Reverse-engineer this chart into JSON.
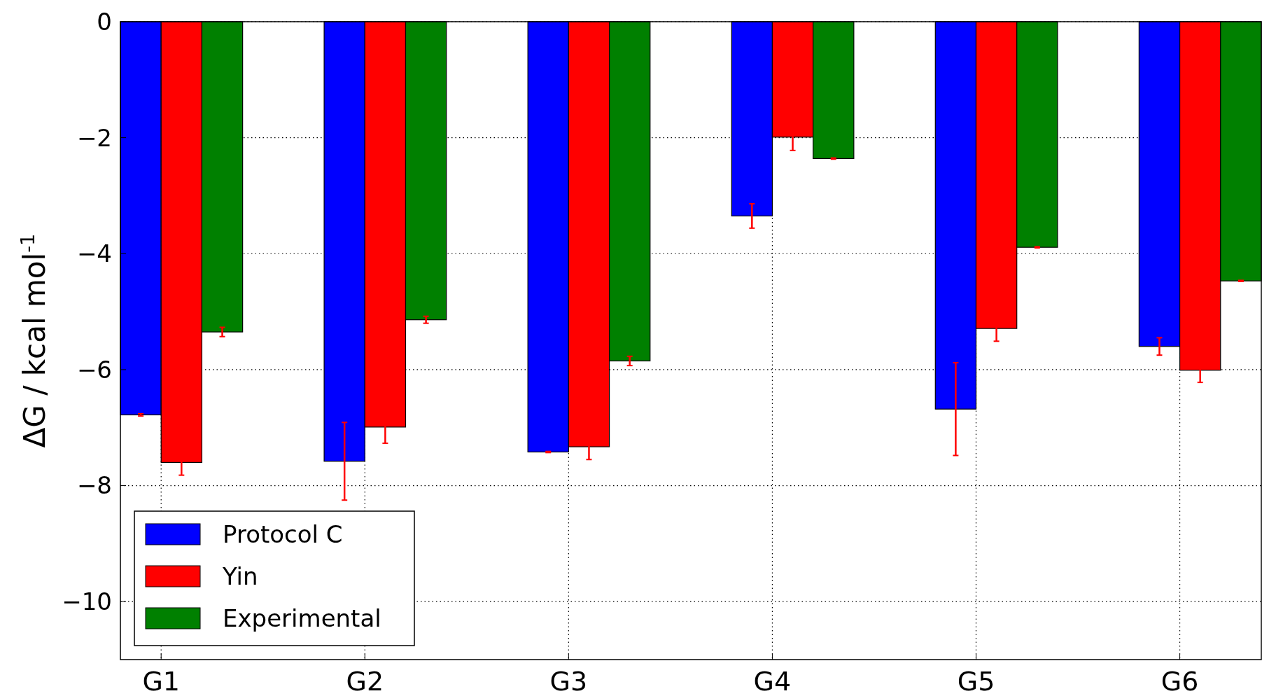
{
  "chart_data": {
    "type": "bar",
    "ylabel": "ΔG / kcal mol$^{-1}$",
    "categories": [
      "G1",
      "G2",
      "G3",
      "G4",
      "G5",
      "G6"
    ],
    "series": [
      {
        "name": "Protocol C",
        "color": "#0000ff",
        "values": [
          -6.78,
          -7.58,
          -7.42,
          -3.35,
          -6.68,
          -5.6
        ],
        "errors": [
          0.02,
          0.67,
          0.01,
          0.21,
          0.8,
          0.15
        ]
      },
      {
        "name": "Yin",
        "color": "#ff0000",
        "values": [
          -7.6,
          -6.99,
          -7.33,
          -1.99,
          -5.29,
          -6.01
        ],
        "errors": [
          0.22,
          0.28,
          0.22,
          0.23,
          0.22,
          0.21
        ]
      },
      {
        "name": "Experimental",
        "color": "#008000",
        "values": [
          -5.35,
          -5.14,
          -5.85,
          -2.36,
          -3.89,
          -4.47
        ],
        "errors": [
          0.08,
          0.06,
          0.08,
          0.01,
          0.01,
          0.01
        ]
      }
    ],
    "ylim": [
      -11,
      0
    ],
    "yticks": [
      {
        "value": -10,
        "label": "−10"
      },
      {
        "value": -8,
        "label": "−8"
      },
      {
        "value": -6,
        "label": "−6"
      },
      {
        "value": -4,
        "label": "−4"
      },
      {
        "value": -2,
        "label": "−2"
      },
      0
    ],
    "grid": true,
    "legend": "bottom left"
  }
}
